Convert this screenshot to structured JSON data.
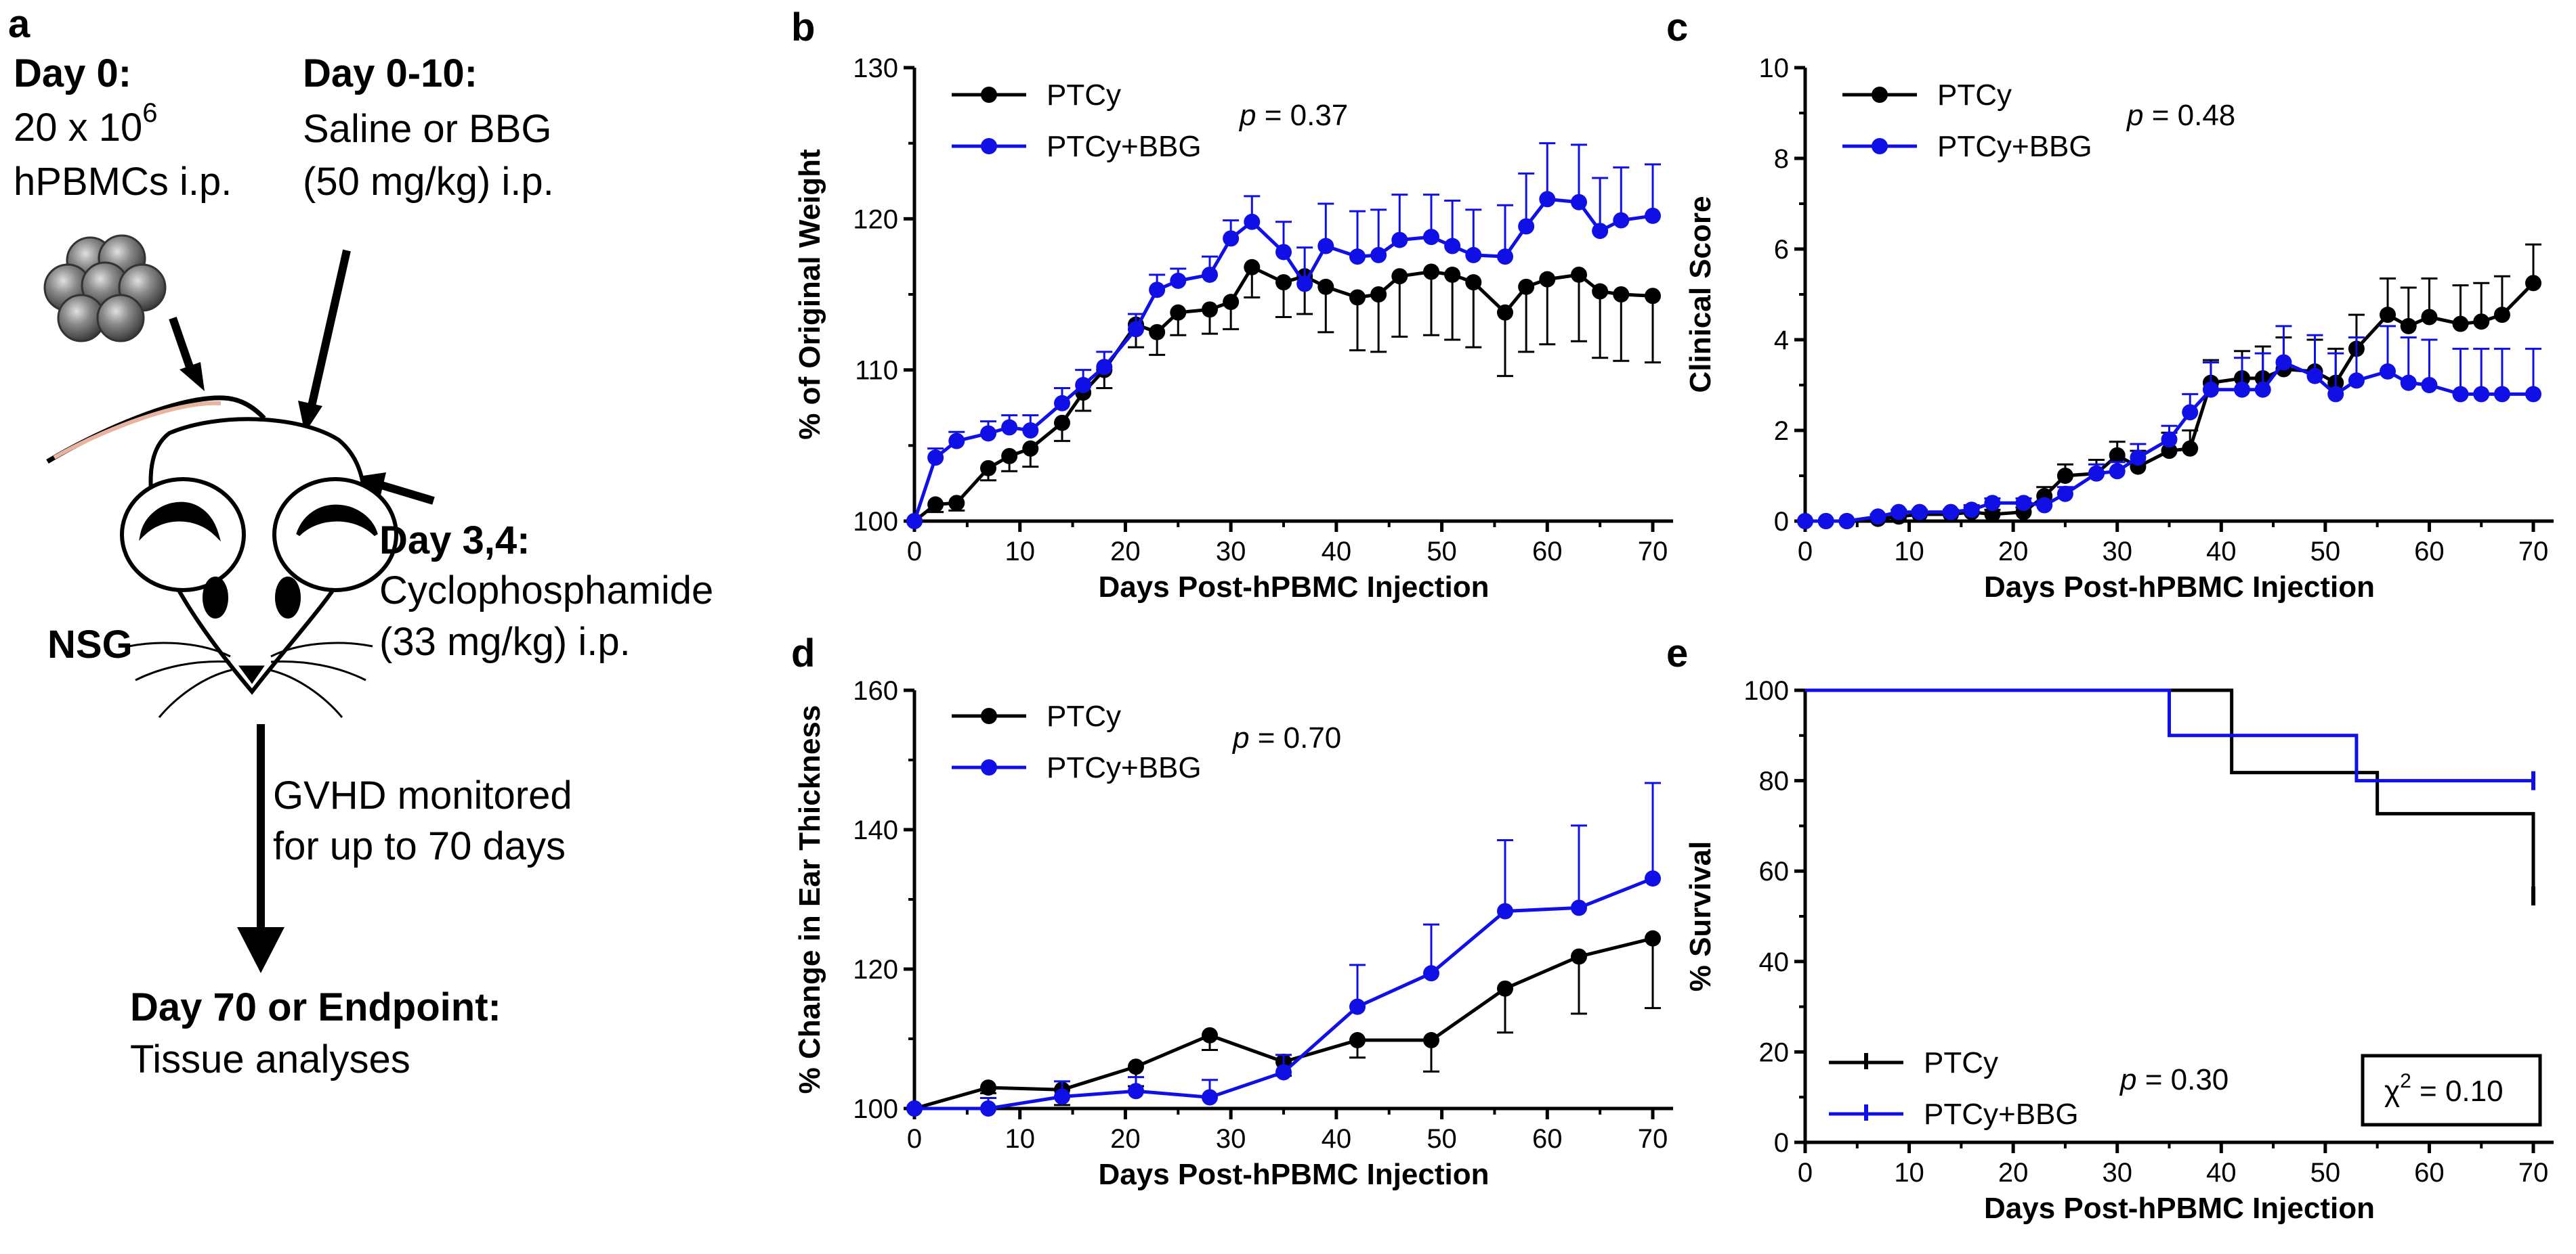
{
  "schematic": {
    "panel_label": "a",
    "day0_title": "Day 0:",
    "day0_cells_prefix": "20 x 10",
    "day0_cells_exp": "6",
    "day0_route": "hPBMCs i.p.",
    "day010_title": "Day 0-10:",
    "day010_line1": "Saline or BBG",
    "day010_line2": "(50 mg/kg) i.p.",
    "day34_title": "Day 3,4:",
    "day34_line1": "Cyclophosphamide",
    "day34_line2": "(33 mg/kg) i.p.",
    "mouse_label": "NSG",
    "monitor_line1": "GVHD monitored",
    "monitor_line2": "for up to 70 days",
    "endpoint_title": "Day 70 or Endpoint:",
    "endpoint_line": "Tissue analyses"
  },
  "colors": {
    "ptcy": "#000000",
    "ptcy_bbg": "#1010e6"
  },
  "chart_data": [
    {
      "id": "b",
      "panel_label": "b",
      "type": "line",
      "xlabel": "Days Post-hPBMC Injection",
      "ylabel": "% of Original Weight",
      "xlim": [
        0,
        70
      ],
      "ylim": [
        100,
        130
      ],
      "xticks": [
        "0",
        "10",
        "20",
        "30",
        "40",
        "50",
        "60",
        "70"
      ],
      "yticks": [
        "100",
        "110",
        "120",
        "130"
      ],
      "pvalue": {
        "label": "p",
        "text": " = 0.37"
      },
      "series": [
        {
          "name": "PTCy",
          "color": "#000000",
          "x": [
            0,
            2,
            4,
            7,
            9,
            11,
            14,
            16,
            18,
            21,
            23,
            25,
            28,
            30,
            32,
            35,
            37,
            39,
            42,
            44,
            46,
            49,
            51,
            53,
            56,
            58,
            60,
            63,
            65,
            67,
            70
          ],
          "y": [
            100,
            101.1,
            101.2,
            103.5,
            104.3,
            104.8,
            106.5,
            108.5,
            110,
            113,
            112.5,
            113.8,
            114,
            114.5,
            116.8,
            115.8,
            116.2,
            115.5,
            114.8,
            115,
            116.2,
            116.5,
            116.3,
            115.8,
            113.8,
            115.5,
            116,
            116.3,
            115.2,
            115,
            114.9
          ],
          "err": [
            0,
            0.5,
            0.5,
            0.8,
            1,
            1.2,
            1.2,
            1.2,
            1.2,
            1.5,
            1.5,
            1.5,
            1.6,
            1.8,
            2,
            2.3,
            2.5,
            3,
            3.5,
            3.8,
            4,
            4.2,
            4.3,
            4.3,
            4.2,
            4.3,
            4.3,
            4.4,
            4.4,
            4.4,
            4.4
          ]
        },
        {
          "name": "PTCy+BBG",
          "color": "#1010e6",
          "x": [
            0,
            2,
            4,
            7,
            9,
            11,
            14,
            16,
            18,
            21,
            23,
            25,
            28,
            30,
            32,
            35,
            37,
            39,
            42,
            44,
            46,
            49,
            51,
            53,
            56,
            58,
            60,
            63,
            65,
            67,
            70
          ],
          "y": [
            100,
            104.2,
            105.3,
            105.8,
            106.2,
            106,
            107.8,
            109,
            110.2,
            112.7,
            115.3,
            115.9,
            116.3,
            118.7,
            119.8,
            117.8,
            115.7,
            118.2,
            117.5,
            117.6,
            118.6,
            118.8,
            118.2,
            117.6,
            117.5,
            119.5,
            121.3,
            121.1,
            119.2,
            119.9,
            120.2
          ],
          "err": [
            0,
            0.6,
            0.6,
            0.8,
            0.8,
            1,
            1,
            1,
            1,
            1,
            1,
            0.8,
            1.2,
            1.2,
            1.7,
            2,
            2.4,
            2.8,
            3,
            3,
            3,
            2.8,
            3,
            3,
            3.4,
            3.5,
            3.7,
            3.8,
            3.5,
            3.5,
            3.4
          ]
        }
      ]
    },
    {
      "id": "c",
      "panel_label": "c",
      "type": "line",
      "xlabel": "Days Post-hPBMC Injection",
      "ylabel": "Clinical Score",
      "xlim": [
        0,
        70
      ],
      "ylim": [
        0,
        10
      ],
      "xticks": [
        "0",
        "10",
        "20",
        "30",
        "40",
        "50",
        "60",
        "70"
      ],
      "yticks": [
        "0",
        "2",
        "4",
        "6",
        "8",
        "10"
      ],
      "pvalue": {
        "label": "p",
        "text": " = 0.48"
      },
      "series": [
        {
          "name": "PTCy",
          "color": "#000000",
          "x": [
            0,
            2,
            4,
            7,
            9,
            11,
            14,
            16,
            18,
            21,
            23,
            25,
            28,
            30,
            32,
            35,
            37,
            39,
            42,
            44,
            46,
            49,
            51,
            53,
            56,
            58,
            60,
            63,
            65,
            67,
            70
          ],
          "y": [
            0,
            0,
            0,
            0.05,
            0.1,
            0.15,
            0.15,
            0.2,
            0.15,
            0.2,
            0.55,
            1,
            1.05,
            1.45,
            1.2,
            1.55,
            1.6,
            3.05,
            3.15,
            3.15,
            3.35,
            3.3,
            3.05,
            3.8,
            4.55,
            4.3,
            4.5,
            4.35,
            4.4,
            4.55,
            5.25
          ],
          "err": [
            0,
            0,
            0,
            0.05,
            0.05,
            0.05,
            0.05,
            0.1,
            0.1,
            0.1,
            0.2,
            0.25,
            0.3,
            0.3,
            0.35,
            0.4,
            0.4,
            0.5,
            0.6,
            0.7,
            0.7,
            0.7,
            0.75,
            0.75,
            0.8,
            0.85,
            0.85,
            0.85,
            0.85,
            0.85,
            0.85
          ]
        },
        {
          "name": "PTCy+BBG",
          "color": "#1010e6",
          "x": [
            0,
            2,
            4,
            7,
            9,
            11,
            14,
            16,
            18,
            21,
            23,
            25,
            28,
            30,
            32,
            35,
            37,
            39,
            42,
            44,
            46,
            49,
            51,
            53,
            56,
            58,
            60,
            63,
            65,
            67,
            70
          ],
          "y": [
            0,
            0,
            0,
            0.1,
            0.2,
            0.2,
            0.2,
            0.25,
            0.4,
            0.4,
            0.35,
            0.6,
            1.05,
            1.1,
            1.4,
            1.8,
            2.4,
            2.9,
            2.9,
            2.9,
            3.5,
            3.2,
            2.8,
            3.1,
            3.3,
            3.05,
            3,
            2.8,
            2.8,
            2.8,
            2.8
          ],
          "err": [
            0,
            0,
            0,
            0.05,
            0.05,
            0.05,
            0.05,
            0.1,
            0.1,
            0.1,
            0.1,
            0.15,
            0.2,
            0.2,
            0.3,
            0.3,
            0.4,
            0.6,
            0.7,
            0.8,
            0.8,
            0.9,
            0.9,
            0.95,
            1,
            1,
            1,
            1,
            1,
            1,
            1
          ]
        }
      ]
    },
    {
      "id": "d",
      "panel_label": "d",
      "type": "line",
      "xlabel": "Days Post-hPBMC Injection",
      "ylabel": "% Change in Ear Thickness",
      "xlim": [
        0,
        70
      ],
      "ylim": [
        100,
        160
      ],
      "xticks": [
        "0",
        "10",
        "20",
        "30",
        "40",
        "50",
        "60",
        "70"
      ],
      "yticks": [
        "100",
        "120",
        "140",
        "160"
      ],
      "pvalue": {
        "label": "p",
        "text": " = 0.70"
      },
      "series": [
        {
          "name": "PTCy",
          "color": "#000000",
          "x": [
            0,
            7,
            14,
            21,
            28,
            35,
            42,
            49,
            56,
            63,
            70
          ],
          "y": [
            100,
            103,
            102.7,
            106,
            110.5,
            106.7,
            109.8,
            109.8,
            117.2,
            121.8,
            124.4
          ],
          "err": [
            0,
            0.8,
            2.2,
            2.8,
            2.1,
            2,
            2.5,
            4.5,
            6.3,
            8.2,
            10
          ]
        },
        {
          "name": "PTCy+BBG",
          "color": "#1010e6",
          "x": [
            0,
            7,
            14,
            21,
            28,
            35,
            42,
            49,
            56,
            63,
            70
          ],
          "y": [
            100,
            100,
            101.7,
            102.5,
            101.6,
            105.2,
            114.6,
            119.4,
            128.3,
            128.8,
            133
          ],
          "err": [
            0,
            1.5,
            2.2,
            2,
            2.5,
            2.5,
            6,
            7,
            10.2,
            11.8,
            13.7
          ]
        }
      ]
    },
    {
      "id": "e",
      "panel_label": "e",
      "type": "line",
      "subtype": "survival",
      "xlabel": "Days Post-hPBMC Injection",
      "ylabel": "% Survival",
      "xlim": [
        0,
        70
      ],
      "ylim": [
        0,
        100
      ],
      "xticks": [
        "0",
        "10",
        "20",
        "30",
        "40",
        "50",
        "60",
        "70"
      ],
      "yticks": [
        "0",
        "20",
        "40",
        "60",
        "80",
        "100"
      ],
      "pvalue": {
        "label": "p",
        "text": " = 0.30"
      },
      "chi_square": {
        "symbol": "χ",
        "exp": "2",
        "text": " = 0.10"
      },
      "series": [
        {
          "name": "PTCy",
          "color": "#000000",
          "x": [
            0,
            41,
            55,
            70,
            70
          ],
          "y": [
            100,
            81.8,
            72.7,
            72.7,
            54.5
          ]
        },
        {
          "name": "PTCy+BBG",
          "color": "#1010e6",
          "x": [
            0,
            35,
            53,
            70
          ],
          "y": [
            100,
            90,
            80,
            80
          ]
        }
      ]
    }
  ]
}
